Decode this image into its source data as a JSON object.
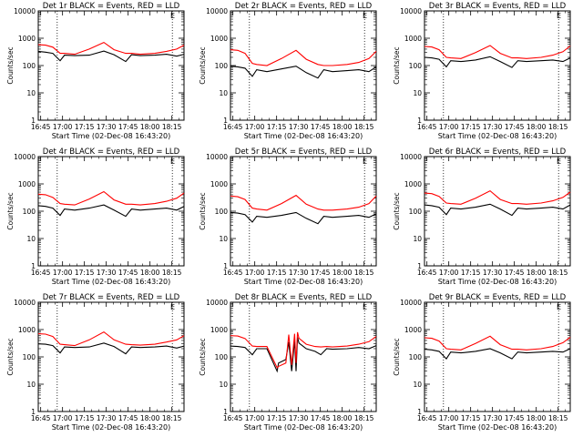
{
  "figure": {
    "xlabel_common": "Start Time (02-Dec-08 16:43:20)",
    "ylabel_common": "Counts/sec",
    "x_tick_labels": [
      "16:45",
      "17:00",
      "17:15",
      "17:30",
      "17:45",
      "18:00",
      "18:15"
    ],
    "y_tick_labels": [
      "1",
      "10",
      "100",
      "1000",
      "10000"
    ],
    "colors": {
      "events": "#000000",
      "lld": "#ff0000",
      "axis": "#000000"
    },
    "corner_mark": "E"
  },
  "chart_data": [
    {
      "type": "line",
      "title": "Det 1r BLACK = Events, RED = LLD",
      "xlabel": "Start Time (02-Dec-08 16:43:20)",
      "ylabel": "Counts/sec",
      "x_unit": "minutes since 16:43:20",
      "xlim": [
        0,
        100
      ],
      "ylim": [
        1,
        10000
      ],
      "y_scale": "log",
      "vlines": [
        13,
        92
      ],
      "series": [
        {
          "name": "Events",
          "color": "#000000",
          "x": [
            0,
            5,
            10,
            15,
            18,
            25,
            35,
            45,
            52,
            60,
            64,
            70,
            80,
            88,
            95,
            100
          ],
          "y": [
            330,
            310,
            280,
            150,
            240,
            230,
            240,
            340,
            250,
            140,
            250,
            230,
            240,
            260,
            220,
            260
          ]
        },
        {
          "name": "LLD",
          "color": "#ff0000",
          "x": [
            0,
            5,
            10,
            15,
            18,
            25,
            35,
            45,
            52,
            60,
            64,
            70,
            80,
            88,
            95,
            100
          ],
          "y": [
            580,
            560,
            470,
            280,
            280,
            260,
            400,
            700,
            380,
            280,
            280,
            260,
            280,
            330,
            400,
            560
          ]
        }
      ]
    },
    {
      "type": "line",
      "title": "Det 2r BLACK = Events, RED = LLD",
      "xlabel": "Start Time (02-Dec-08 16:43:20)",
      "ylabel": "Counts/sec",
      "x_unit": "minutes since 16:43:20",
      "xlim": [
        0,
        100
      ],
      "ylim": [
        1,
        10000
      ],
      "y_scale": "log",
      "vlines": [
        13,
        92
      ],
      "series": [
        {
          "name": "Events",
          "color": "#000000",
          "x": [
            0,
            5,
            10,
            15,
            18,
            25,
            35,
            45,
            52,
            60,
            64,
            70,
            80,
            88,
            95,
            100
          ],
          "y": [
            95,
            90,
            80,
            40,
            70,
            60,
            75,
            95,
            55,
            35,
            70,
            60,
            65,
            70,
            60,
            90
          ]
        },
        {
          "name": "LLD",
          "color": "#ff0000",
          "x": [
            0,
            5,
            10,
            15,
            18,
            25,
            35,
            45,
            52,
            60,
            64,
            70,
            80,
            88,
            95,
            100
          ],
          "y": [
            380,
            360,
            280,
            120,
            110,
            100,
            180,
            360,
            170,
            110,
            100,
            100,
            110,
            130,
            180,
            330
          ]
        }
      ]
    },
    {
      "type": "line",
      "title": "Det 3r BLACK = Events, RED = LLD",
      "xlabel": "Start Time (02-Dec-08 16:43:20)",
      "ylabel": "Counts/sec",
      "x_unit": "minutes since 16:43:20",
      "xlim": [
        0,
        100
      ],
      "ylim": [
        1,
        10000
      ],
      "y_scale": "log",
      "vlines": [
        13,
        92
      ],
      "series": [
        {
          "name": "Events",
          "color": "#000000",
          "x": [
            0,
            5,
            10,
            15,
            18,
            25,
            35,
            45,
            52,
            60,
            64,
            70,
            80,
            88,
            95,
            100
          ],
          "y": [
            200,
            190,
            170,
            90,
            150,
            140,
            160,
            210,
            140,
            85,
            150,
            140,
            150,
            160,
            140,
            190
          ]
        },
        {
          "name": "LLD",
          "color": "#ff0000",
          "x": [
            0,
            5,
            10,
            15,
            18,
            25,
            35,
            45,
            52,
            60,
            64,
            70,
            80,
            88,
            95,
            100
          ],
          "y": [
            500,
            480,
            380,
            200,
            190,
            180,
            300,
            540,
            280,
            190,
            190,
            180,
            200,
            240,
            320,
            520
          ]
        }
      ]
    },
    {
      "type": "line",
      "title": "Det 4r BLACK = Events, RED = LLD",
      "xlabel": "Start Time (02-Dec-08 16:43:20)",
      "ylabel": "Counts/sec",
      "x_unit": "minutes since 16:43:20",
      "xlim": [
        0,
        100
      ],
      "ylim": [
        1,
        10000
      ],
      "y_scale": "log",
      "vlines": [
        13,
        92
      ],
      "series": [
        {
          "name": "Events",
          "color": "#000000",
          "x": [
            0,
            5,
            10,
            15,
            18,
            25,
            35,
            45,
            52,
            60,
            64,
            70,
            80,
            88,
            95,
            100
          ],
          "y": [
            160,
            150,
            130,
            70,
            120,
            110,
            130,
            170,
            110,
            65,
            120,
            110,
            120,
            130,
            110,
            150
          ]
        },
        {
          "name": "LLD",
          "color": "#ff0000",
          "x": [
            0,
            5,
            10,
            15,
            18,
            25,
            35,
            45,
            52,
            60,
            64,
            70,
            80,
            88,
            95,
            100
          ],
          "y": [
            420,
            400,
            320,
            190,
            180,
            170,
            280,
            520,
            260,
            180,
            180,
            170,
            190,
            230,
            300,
            460
          ]
        }
      ]
    },
    {
      "type": "line",
      "title": "Det 5r BLACK = Events, RED = LLD",
      "xlabel": "Start Time (02-Dec-08 16:43:20)",
      "ylabel": "Counts/sec",
      "x_unit": "minutes since 16:43:20",
      "xlim": [
        0,
        100
      ],
      "ylim": [
        1,
        10000
      ],
      "y_scale": "log",
      "vlines": [
        13,
        92
      ],
      "series": [
        {
          "name": "Events",
          "color": "#000000",
          "x": [
            0,
            5,
            10,
            15,
            18,
            25,
            35,
            45,
            52,
            60,
            64,
            70,
            80,
            88,
            95,
            100
          ],
          "y": [
            90,
            85,
            75,
            40,
            65,
            60,
            70,
            90,
            55,
            35,
            65,
            60,
            65,
            70,
            60,
            80
          ]
        },
        {
          "name": "LLD",
          "color": "#ff0000",
          "x": [
            0,
            5,
            10,
            15,
            18,
            25,
            35,
            45,
            52,
            60,
            64,
            70,
            80,
            88,
            95,
            100
          ],
          "y": [
            360,
            340,
            270,
            130,
            120,
            110,
            190,
            380,
            180,
            120,
            110,
            110,
            120,
            140,
            190,
            360
          ]
        }
      ]
    },
    {
      "type": "line",
      "title": "Det 6r BLACK = Events, RED = LLD",
      "xlabel": "Start Time (02-Dec-08 16:43:20)",
      "ylabel": "Counts/sec",
      "x_unit": "minutes since 16:43:20",
      "xlim": [
        0,
        100
      ],
      "ylim": [
        1,
        10000
      ],
      "y_scale": "log",
      "vlines": [
        13,
        92
      ],
      "series": [
        {
          "name": "Events",
          "color": "#000000",
          "x": [
            0,
            5,
            10,
            15,
            18,
            25,
            35,
            45,
            52,
            60,
            64,
            70,
            80,
            88,
            95,
            100
          ],
          "y": [
            170,
            160,
            140,
            75,
            130,
            120,
            140,
            180,
            120,
            70,
            130,
            120,
            130,
            140,
            120,
            170
          ]
        },
        {
          "name": "LLD",
          "color": "#ff0000",
          "x": [
            0,
            5,
            10,
            15,
            18,
            25,
            35,
            45,
            52,
            60,
            64,
            70,
            80,
            88,
            95,
            100
          ],
          "y": [
            460,
            440,
            350,
            200,
            190,
            180,
            300,
            560,
            270,
            190,
            190,
            180,
            200,
            240,
            320,
            500
          ]
        }
      ]
    },
    {
      "type": "line",
      "title": "Det 7r BLACK = Events, RED = LLD",
      "xlabel": "Start Time (02-Dec-08 16:43:20)",
      "ylabel": "Counts/sec",
      "x_unit": "minutes since 16:43:20",
      "xlim": [
        0,
        100
      ],
      "ylim": [
        1,
        10000
      ],
      "y_scale": "log",
      "vlines": [
        13,
        92
      ],
      "series": [
        {
          "name": "Events",
          "color": "#000000",
          "x": [
            0,
            5,
            10,
            15,
            18,
            25,
            35,
            45,
            52,
            60,
            64,
            70,
            80,
            88,
            95,
            100
          ],
          "y": [
            300,
            290,
            260,
            140,
            230,
            220,
            230,
            320,
            240,
            130,
            230,
            220,
            230,
            250,
            210,
            250
          ]
        },
        {
          "name": "LLD",
          "color": "#ff0000",
          "x": [
            0,
            5,
            10,
            15,
            18,
            25,
            35,
            45,
            52,
            60,
            64,
            70,
            80,
            88,
            95,
            100
          ],
          "y": [
            700,
            680,
            560,
            290,
            280,
            260,
            420,
            820,
            420,
            290,
            280,
            270,
            290,
            350,
            420,
            600
          ]
        }
      ]
    },
    {
      "type": "line",
      "title": "Det 8r BLACK = Events, RED = LLD",
      "xlabel": "Start Time (02-Dec-08 16:43:20)",
      "ylabel": "Counts/sec",
      "x_unit": "minutes since 16:43:20",
      "xlim": [
        0,
        100
      ],
      "ylim": [
        1,
        10000
      ],
      "y_scale": "log",
      "vlines": [
        13,
        92
      ],
      "series": [
        {
          "name": "Events",
          "color": "#000000",
          "x": [
            0,
            5,
            10,
            15,
            18,
            25,
            32,
            33,
            38,
            40,
            42,
            44,
            45,
            46,
            47,
            52,
            58,
            62,
            66,
            70,
            80,
            88,
            95,
            100
          ],
          "y": [
            250,
            240,
            220,
            120,
            200,
            200,
            30,
            60,
            80,
            350,
            30,
            400,
            30,
            520,
            320,
            200,
            160,
            120,
            200,
            190,
            200,
            220,
            200,
            260
          ]
        },
        {
          "name": "LLD",
          "color": "#ff0000",
          "x": [
            0,
            5,
            10,
            15,
            18,
            25,
            32,
            33,
            38,
            40,
            42,
            44,
            45,
            46,
            47,
            52,
            58,
            62,
            66,
            70,
            80,
            88,
            95,
            100
          ],
          "y": [
            600,
            580,
            470,
            250,
            240,
            240,
            40,
            45,
            60,
            650,
            50,
            700,
            60,
            800,
            480,
            290,
            240,
            230,
            240,
            230,
            250,
            290,
            360,
            560
          ]
        }
      ]
    },
    {
      "type": "line",
      "title": "Det 9r BLACK = Events, RED = LLD",
      "xlabel": "Start Time (02-Dec-08 16:43:20)",
      "ylabel": "Counts/sec",
      "x_unit": "minutes since 16:43:20",
      "xlim": [
        0,
        100
      ],
      "ylim": [
        1,
        10000
      ],
      "y_scale": "log",
      "vlines": [
        13,
        92
      ],
      "series": [
        {
          "name": "Events",
          "color": "#000000",
          "x": [
            0,
            5,
            10,
            15,
            18,
            25,
            35,
            45,
            52,
            60,
            64,
            70,
            80,
            88,
            95,
            100
          ],
          "y": [
            190,
            180,
            160,
            85,
            150,
            140,
            160,
            200,
            140,
            85,
            150,
            140,
            150,
            160,
            150,
            200
          ]
        },
        {
          "name": "LLD",
          "color": "#ff0000",
          "x": [
            0,
            5,
            10,
            15,
            18,
            25,
            35,
            45,
            52,
            60,
            64,
            70,
            80,
            88,
            95,
            100
          ],
          "y": [
            500,
            480,
            380,
            200,
            190,
            180,
            310,
            570,
            280,
            190,
            190,
            180,
            200,
            240,
            330,
            520
          ]
        }
      ]
    }
  ]
}
